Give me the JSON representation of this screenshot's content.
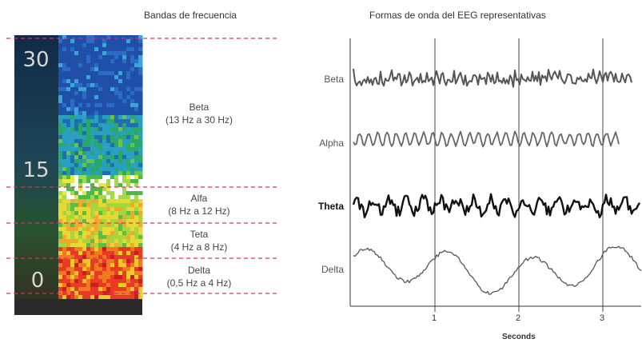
{
  "left_panel": {
    "title": "Bandas de frecuencia",
    "spectrogram_scale": [
      "30",
      "15",
      "0"
    ],
    "bands": [
      {
        "name": "Beta",
        "range": "(13 Hz a 30 Hz)"
      },
      {
        "name": "Alfa",
        "range": "(8 Hz a 12 Hz)"
      },
      {
        "name": "Teta",
        "range": "(4 Hz a 8 Hz)"
      },
      {
        "name": "Delta",
        "range": "(0,5 Hz a 4 Hz)"
      }
    ],
    "colors": {
      "divider": "#d6336c",
      "spectro_bg": "#1a2e3a"
    }
  },
  "right_panel": {
    "title": "Formas de onda del EEG representativas",
    "waves": [
      {
        "name": "Beta",
        "color": "#555555"
      },
      {
        "name": "Alpha",
        "color": "#666666"
      },
      {
        "name": "Theta",
        "color": "#111111"
      },
      {
        "name": "Delta",
        "color": "#555555"
      }
    ],
    "x_ticks": [
      "1",
      "2",
      "3"
    ],
    "x_axis_title": "Seconds"
  }
}
